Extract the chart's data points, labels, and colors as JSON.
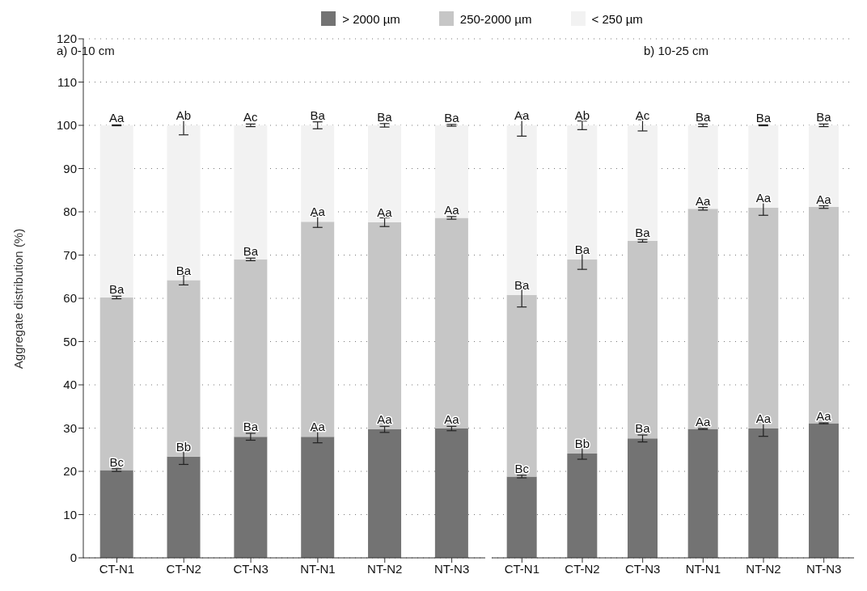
{
  "chart_data": [
    {
      "type": "bar",
      "title": "a) 0-10 cm",
      "ylabel": "Aggregate distribution (%)",
      "stacked": true,
      "legend": "top",
      "grid": "y",
      "categories": [
        "CT-N1",
        "CT-N2",
        "CT-N3",
        "NT-N1",
        "NT-N2",
        "NT-N3"
      ],
      "ylim": [
        0,
        120
      ],
      "yticks": [
        0,
        10,
        20,
        30,
        40,
        50,
        60,
        70,
        80,
        90,
        100,
        110,
        120
      ],
      "series": [
        {
          "name": "> 2000 µm",
          "color": "#737373",
          "values": [
            20.3,
            23.4,
            28.0,
            28.0,
            29.7,
            29.9
          ],
          "errors": [
            0.3,
            1.8,
            0.8,
            1.4,
            0.7,
            0.5
          ],
          "value_labels": [
            "Bc",
            "Bb",
            "Ba",
            "Aa",
            "Aa",
            "Aa"
          ]
        },
        {
          "name": "250-2000 µm",
          "color": "#c6c6c6",
          "values": [
            39.9,
            40.8,
            41.0,
            49.7,
            47.9,
            48.7
          ],
          "errors": [
            0.3,
            1.1,
            0.3,
            1.3,
            1.0,
            0.3
          ],
          "value_labels": [
            "Ba",
            "Ba",
            "Ba",
            "Aa",
            "Aa",
            "Aa"
          ]
        },
        {
          "name": "< 250 µm",
          "color": "#f2f2f2",
          "values": [
            39.8,
            35.8,
            31.0,
            22.3,
            22.4,
            21.4
          ],
          "errors": [
            0.1,
            2.2,
            0.3,
            0.8,
            0.4,
            0.2
          ],
          "value_labels": [
            "Aa",
            "Ab",
            "Ac",
            "Ba",
            "Ba",
            "Ba"
          ]
        }
      ]
    },
    {
      "type": "bar",
      "title": "b) 10-25 cm",
      "stacked": true,
      "grid": "y",
      "tick_labels": "x",
      "categories": [
        "CT-N1",
        "CT-N2",
        "CT-N3",
        "NT-N1",
        "NT-N2",
        "NT-N3"
      ],
      "ylim": [
        0,
        120
      ],
      "yticks": [
        0,
        10,
        20,
        30,
        40,
        50,
        60,
        70,
        80,
        90,
        100,
        110,
        120
      ],
      "series": [
        {
          "name": "> 2000 µm",
          "color": "#737373",
          "values": [
            18.8,
            24.1,
            27.6,
            29.8,
            29.9,
            31.1
          ],
          "errors": [
            0.3,
            1.3,
            0.8,
            0.1,
            1.8,
            0.1
          ],
          "value_labels": [
            "Bc",
            "Bb",
            "Ba",
            "Aa",
            "Aa",
            "Aa"
          ]
        },
        {
          "name": "250-2000 µm",
          "color": "#c6c6c6",
          "values": [
            42.0,
            44.9,
            45.7,
            50.9,
            51.1,
            50.0
          ],
          "errors": [
            2.8,
            2.3,
            0.3,
            0.3,
            1.8,
            0.3
          ],
          "value_labels": [
            "Ba",
            "Ba",
            "Ba",
            "Aa",
            "Aa",
            "Aa"
          ]
        },
        {
          "name": "< 250 µm",
          "color": "#f2f2f2",
          "values": [
            39.2,
            31.0,
            26.7,
            19.3,
            19.0,
            18.9
          ],
          "errors": [
            2.5,
            1.0,
            1.3,
            0.3,
            0.1,
            0.3
          ],
          "value_labels": [
            "Aa",
            "Ab",
            "Ac",
            "Ba",
            "Ba",
            "Ba"
          ]
        }
      ]
    }
  ]
}
